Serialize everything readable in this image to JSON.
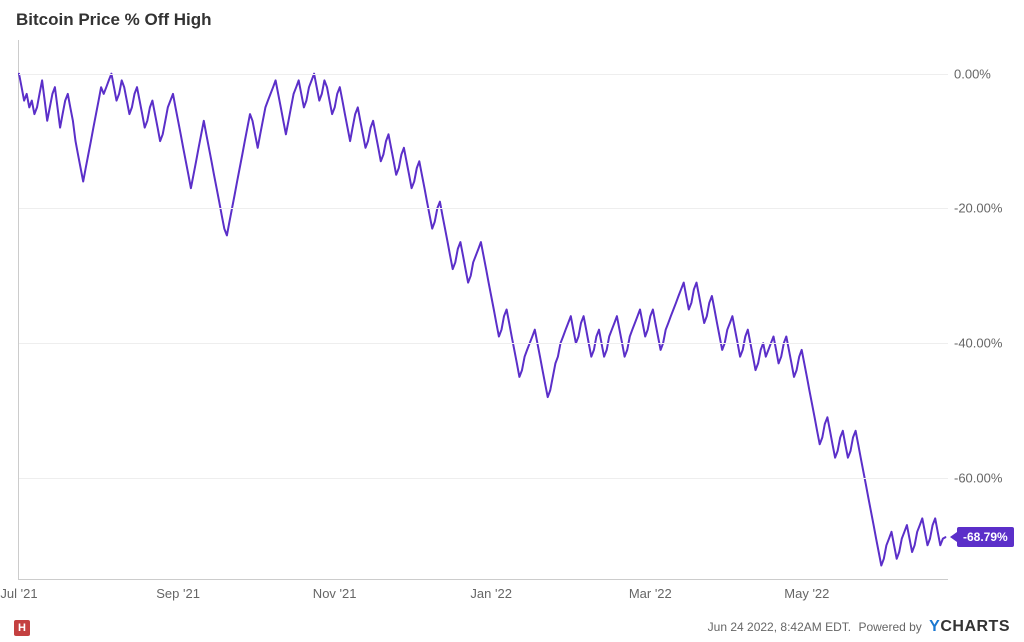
{
  "chart": {
    "type": "line",
    "title": "Bitcoin Price % Off High",
    "line_color": "#5b2fc9",
    "line_width": 2,
    "background_color": "#ffffff",
    "grid_color": "#eeeeee",
    "axis_color": "#cccccc",
    "title_fontsize": 17,
    "label_fontsize": 13,
    "ylim": [
      -75,
      5
    ],
    "xlim_index": [
      0,
      362
    ],
    "y_ticks": [
      0,
      -20,
      -40,
      -60
    ],
    "y_tick_labels": [
      "0.00%",
      "-20.00%",
      "-40.00%",
      "-60.00%"
    ],
    "x_ticks_index": [
      0,
      62,
      123,
      184,
      246,
      307
    ],
    "x_tick_labels": [
      "Jul '21",
      "Sep '21",
      "Nov '21",
      "Jan '22",
      "Mar '22",
      "May '22"
    ],
    "end_value": -68.79,
    "end_label": "-68.79%",
    "series": [
      0,
      -2,
      -4,
      -3,
      -5,
      -4,
      -6,
      -5,
      -3,
      -1,
      -4,
      -7,
      -5,
      -3,
      -2,
      -5,
      -8,
      -6,
      -4,
      -3,
      -5,
      -7,
      -10,
      -12,
      -14,
      -16,
      -14,
      -12,
      -10,
      -8,
      -6,
      -4,
      -2,
      -3,
      -2,
      -1,
      0,
      -2,
      -4,
      -3,
      -1,
      -2,
      -4,
      -6,
      -5,
      -3,
      -2,
      -4,
      -6,
      -8,
      -7,
      -5,
      -4,
      -6,
      -8,
      -10,
      -9,
      -7,
      -5,
      -4,
      -3,
      -5,
      -7,
      -9,
      -11,
      -13,
      -15,
      -17,
      -15,
      -13,
      -11,
      -9,
      -7,
      -9,
      -11,
      -13,
      -15,
      -17,
      -19,
      -21,
      -23,
      -24,
      -22,
      -20,
      -18,
      -16,
      -14,
      -12,
      -10,
      -8,
      -6,
      -7,
      -9,
      -11,
      -9,
      -7,
      -5,
      -4,
      -3,
      -2,
      -1,
      -3,
      -5,
      -7,
      -9,
      -7,
      -5,
      -3,
      -2,
      -1,
      -3,
      -5,
      -4,
      -2,
      -1,
      0,
      -2,
      -4,
      -3,
      -1,
      -2,
      -4,
      -6,
      -5,
      -3,
      -2,
      -4,
      -6,
      -8,
      -10,
      -8,
      -6,
      -5,
      -7,
      -9,
      -11,
      -10,
      -8,
      -7,
      -9,
      -11,
      -13,
      -12,
      -10,
      -9,
      -11,
      -13,
      -15,
      -14,
      -12,
      -11,
      -13,
      -15,
      -17,
      -16,
      -14,
      -13,
      -15,
      -17,
      -19,
      -21,
      -23,
      -22,
      -20,
      -19,
      -21,
      -23,
      -25,
      -27,
      -29,
      -28,
      -26,
      -25,
      -27,
      -29,
      -31,
      -30,
      -28,
      -27,
      -26,
      -25,
      -27,
      -29,
      -31,
      -33,
      -35,
      -37,
      -39,
      -38,
      -36,
      -35,
      -37,
      -39,
      -41,
      -43,
      -45,
      -44,
      -42,
      -41,
      -40,
      -39,
      -38,
      -40,
      -42,
      -44,
      -46,
      -48,
      -47,
      -45,
      -43,
      -42,
      -40,
      -39,
      -38,
      -37,
      -36,
      -38,
      -40,
      -39,
      -37,
      -36,
      -38,
      -40,
      -42,
      -41,
      -39,
      -38,
      -40,
      -42,
      -41,
      -39,
      -38,
      -37,
      -36,
      -38,
      -40,
      -42,
      -41,
      -39,
      -38,
      -37,
      -36,
      -35,
      -37,
      -39,
      -38,
      -36,
      -35,
      -37,
      -39,
      -41,
      -40,
      -38,
      -37,
      -36,
      -35,
      -34,
      -33,
      -32,
      -31,
      -33,
      -35,
      -34,
      -32,
      -31,
      -33,
      -35,
      -37,
      -36,
      -34,
      -33,
      -35,
      -37,
      -39,
      -41,
      -40,
      -38,
      -37,
      -36,
      -38,
      -40,
      -42,
      -41,
      -39,
      -38,
      -40,
      -42,
      -44,
      -43,
      -41,
      -40,
      -42,
      -41,
      -40,
      -39,
      -41,
      -43,
      -42,
      -40,
      -39,
      -41,
      -43,
      -45,
      -44,
      -42,
      -41,
      -43,
      -45,
      -47,
      -49,
      -51,
      -53,
      -55,
      -54,
      -52,
      -51,
      -53,
      -55,
      -57,
      -56,
      -54,
      -53,
      -55,
      -57,
      -56,
      -54,
      -53,
      -55,
      -57,
      -59,
      -61,
      -63,
      -65,
      -67,
      -69,
      -71,
      -73,
      -72,
      -70,
      -69,
      -68,
      -70,
      -72,
      -71,
      -69,
      -68,
      -67,
      -69,
      -71,
      -70,
      -68,
      -67,
      -66,
      -68,
      -70,
      -69,
      -67,
      -66,
      -68,
      -70,
      -69,
      -68.79
    ]
  },
  "footer": {
    "timestamp": "Jun 24 2022, 8:42AM EDT.",
    "powered_by": "Powered by",
    "brand": "CHARTS",
    "brand_accent": "Y"
  },
  "left_logo": {
    "glyph": "H",
    "text": ""
  }
}
